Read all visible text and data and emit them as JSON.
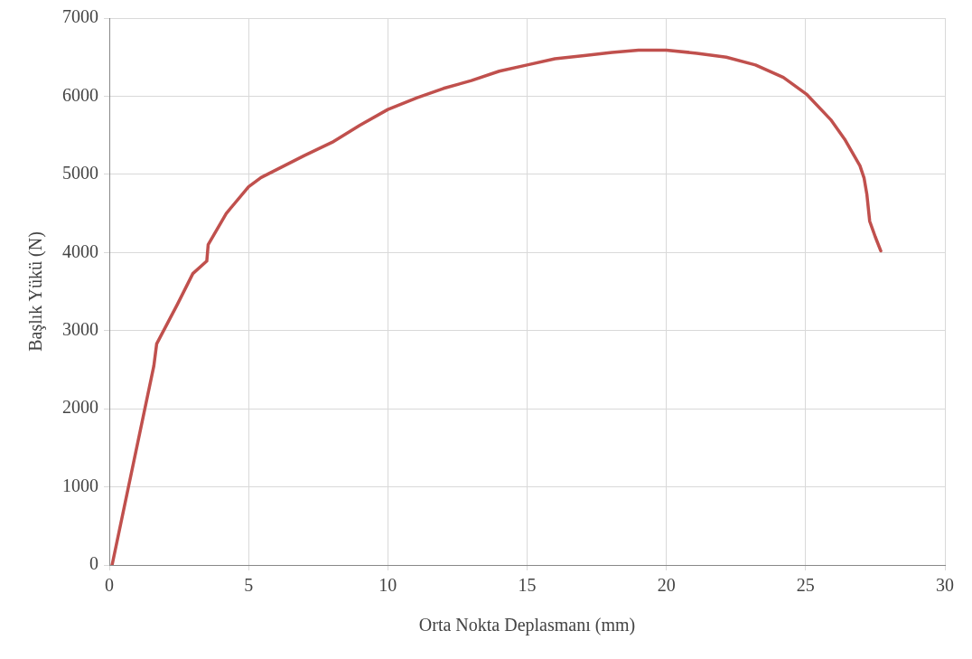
{
  "chart_data": {
    "type": "line",
    "xlabel": "Orta Nokta Deplasmanı (mm)",
    "ylabel": "Başlık Yükü (N)",
    "xlim": [
      0,
      30
    ],
    "xticks": [
      0,
      5,
      10,
      15,
      20,
      25,
      30
    ],
    "ylim": [
      0,
      7000
    ],
    "yticks": [
      0,
      1000,
      2000,
      3000,
      4000,
      5000,
      6000,
      7000
    ],
    "grid": true,
    "legend": false,
    "marker": "none",
    "line_style": "solid",
    "series": [
      {
        "color": "#c0504d",
        "x": [
          0.1,
          1.6,
          1.7,
          2.45,
          3.0,
          3.5,
          3.55,
          4.2,
          5.0,
          5.45,
          7.0,
          8.0,
          9.0,
          10.0,
          11.05,
          12.0,
          13.0,
          14.0,
          15.0,
          16.0,
          17.05,
          18.05,
          19.0,
          20.0,
          21.1,
          22.15,
          23.2,
          24.2,
          25.05,
          25.9,
          26.4,
          26.95,
          27.1,
          27.2,
          27.3,
          27.5,
          27.7
        ],
        "values": [
          0,
          2550,
          2830,
          3340,
          3730,
          3890,
          4100,
          4500,
          4840,
          4960,
          5240,
          5410,
          5630,
          5830,
          5980,
          6100,
          6200,
          6320,
          6400,
          6480,
          6520,
          6560,
          6590,
          6590,
          6550,
          6500,
          6400,
          6240,
          6020,
          5700,
          5450,
          5110,
          4950,
          4740,
          4400,
          4200,
          4020
        ]
      }
    ]
  }
}
